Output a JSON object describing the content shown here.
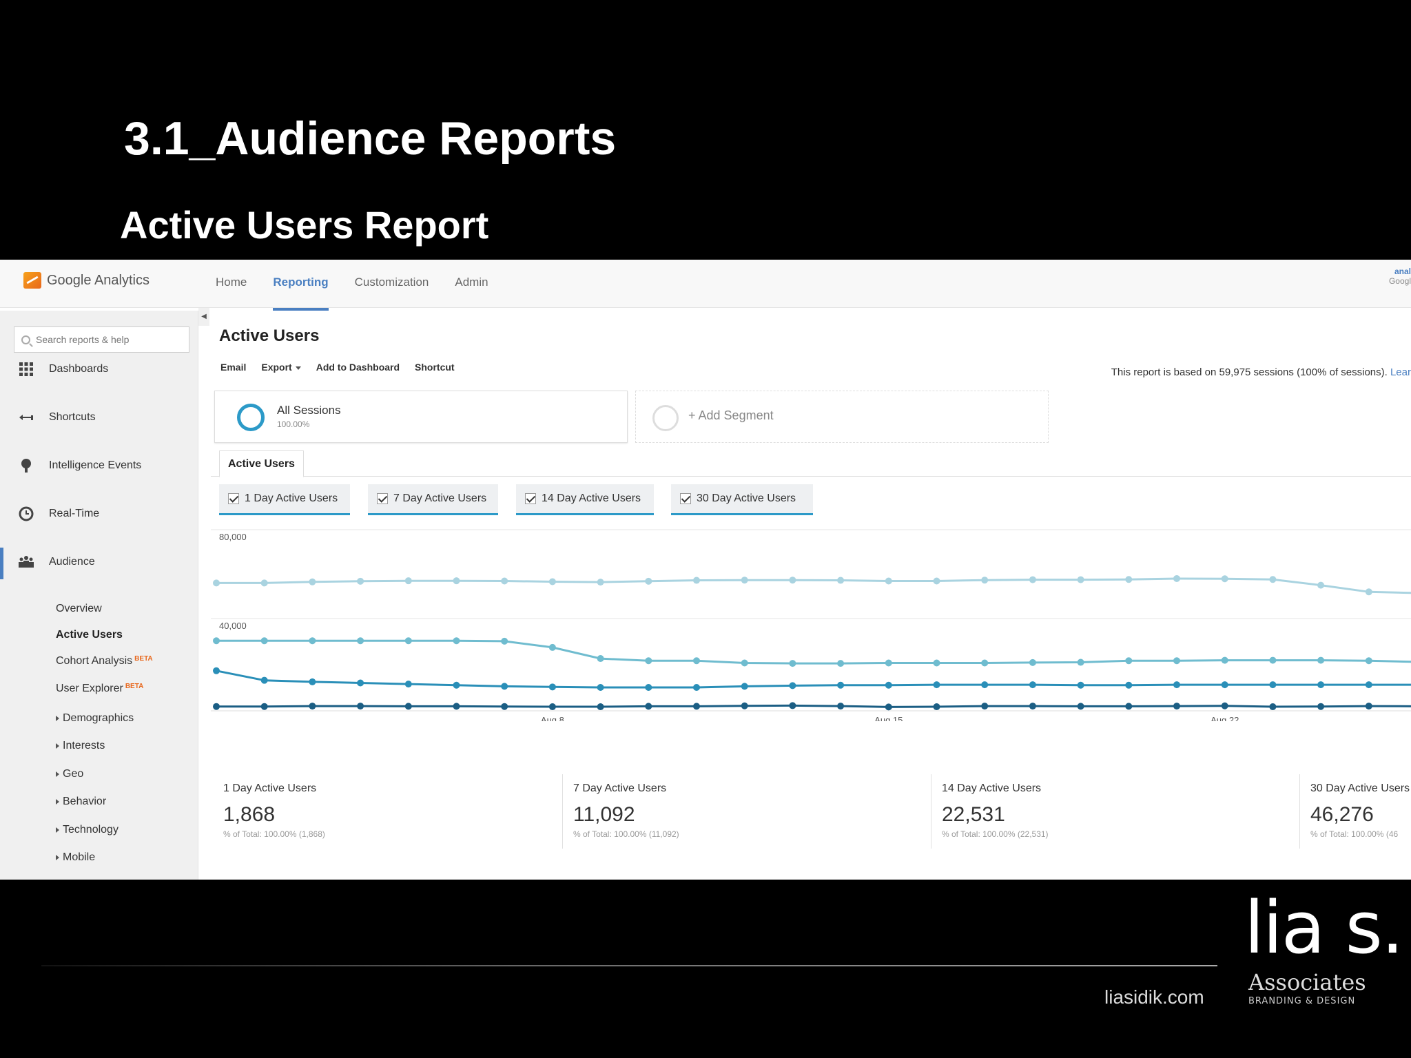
{
  "slide": {
    "title": "3.1_Audience Reports",
    "subtitle": "Active Users Report"
  },
  "app": {
    "brand": "Google Analytics",
    "nav": [
      "Home",
      "Reporting",
      "Customization",
      "Admin"
    ],
    "active_nav": "Reporting",
    "account_line1": "anal",
    "account_line2": "Googl"
  },
  "sidebar": {
    "search_placeholder": "Search reports & help",
    "items": [
      {
        "label": "Dashboards",
        "icon": "grid-icon"
      },
      {
        "label": "Shortcuts",
        "icon": "shortcut-arrow-icon"
      },
      {
        "label": "Intelligence Events",
        "icon": "bulb-icon"
      },
      {
        "label": "Real-Time",
        "icon": "clock-icon"
      },
      {
        "label": "Audience",
        "icon": "people-icon"
      }
    ],
    "sub_items": [
      {
        "label": "Overview"
      },
      {
        "label": "Active Users"
      },
      {
        "label": "Cohort Analysis",
        "badge": "BETA"
      },
      {
        "label": "User Explorer",
        "badge": "BETA"
      },
      {
        "label": "Demographics"
      },
      {
        "label": "Interests"
      },
      {
        "label": "Geo"
      },
      {
        "label": "Behavior"
      },
      {
        "label": "Technology"
      },
      {
        "label": "Mobile"
      }
    ]
  },
  "main": {
    "title": "Active Users",
    "actions": [
      "Email",
      "Export",
      "Add to Dashboard",
      "Shortcut"
    ],
    "report_note": "This report is based on 59,975 sessions (100% of sessions).",
    "report_note_link": "Lear",
    "segment": {
      "name": "All Sessions",
      "pct": "100.00%"
    },
    "add_segment": "+ Add Segment",
    "tab": "Active Users",
    "metrics": [
      "1 Day Active Users",
      "7 Day Active Users",
      "14 Day Active Users",
      "30 Day Active Users"
    ],
    "totals": [
      {
        "label": "1 Day Active Users",
        "value": "1,868",
        "pct": "% of Total: 100.00% (1,868)"
      },
      {
        "label": "7 Day Active Users",
        "value": "11,092",
        "pct": "% of Total: 100.00% (11,092)"
      },
      {
        "label": "14 Day Active Users",
        "value": "22,531",
        "pct": "% of Total: 100.00% (22,531)"
      },
      {
        "label": "30 Day Active Users",
        "value": "46,276",
        "pct": "% of Total: 100.00% (46"
      }
    ]
  },
  "chart_data": {
    "type": "line",
    "y_ticks": [
      "80,000",
      "40,000"
    ],
    "x_tick_labels": [
      "...",
      "Aug 8",
      "Aug 15",
      "Aug 22"
    ],
    "ylim": [
      0,
      80000
    ],
    "series": [
      {
        "name": "30 Day Active Users",
        "color": "#a9d3e0",
        "values": [
          56000,
          56000,
          56500,
          56800,
          57000,
          57000,
          56900,
          56600,
          56400,
          56800,
          57200,
          57300,
          57300,
          57200,
          56900,
          56900,
          57300,
          57500,
          57500,
          57600,
          58000,
          57900,
          57600,
          55000,
          52000,
          51500
        ]
      },
      {
        "name": "14 Day Active Users",
        "color": "#6fbccf",
        "values": [
          30000,
          30000,
          30000,
          30000,
          30000,
          30000,
          29800,
          27000,
          22000,
          21000,
          21000,
          20000,
          19800,
          19800,
          20000,
          20000,
          20000,
          20200,
          20300,
          21000,
          21000,
          21200,
          21200,
          21200,
          21000,
          20500
        ]
      },
      {
        "name": "7 Day Active Users",
        "color": "#2a8fb8",
        "values": [
          16500,
          12200,
          11500,
          11000,
          10500,
          10000,
          9500,
          9200,
          9000,
          9000,
          9000,
          9500,
          9800,
          10000,
          10000,
          10200,
          10200,
          10200,
          10000,
          10000,
          10200,
          10200,
          10200,
          10200,
          10200,
          10200
        ]
      },
      {
        "name": "1 Day Active Users",
        "color": "#1b5e84",
        "values": [
          400,
          400,
          600,
          600,
          500,
          500,
          400,
          300,
          300,
          500,
          500,
          700,
          800,
          600,
          200,
          300,
          600,
          600,
          500,
          500,
          600,
          700,
          300,
          400,
          600,
          500
        ]
      }
    ]
  },
  "footer": {
    "site": "liasidik.com",
    "logo": "lia s.",
    "logo_sub": "Associates",
    "logo_tag": "BRANDING & DESIGN"
  }
}
